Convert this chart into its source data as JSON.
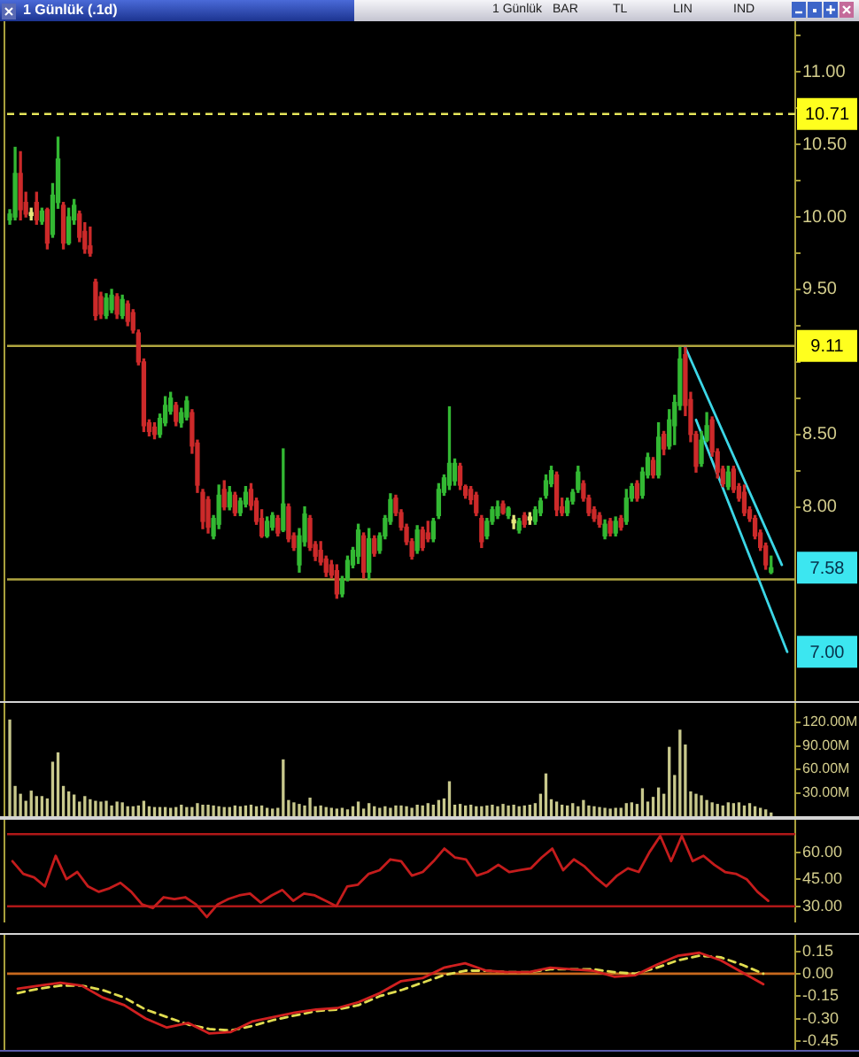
{
  "chart_data": [
    {
      "type": "candlestick",
      "title": "1 Günlük (.1d)",
      "categories": [
        null,
        null,
        null,
        null,
        null,
        null,
        null,
        null,
        null,
        null,
        null,
        null,
        null,
        null,
        null,
        null,
        null,
        null,
        null,
        null,
        null,
        null,
        null,
        null,
        null,
        null,
        null,
        null,
        null,
        null,
        null,
        null,
        null,
        null,
        null,
        null,
        null,
        null,
        null,
        null,
        null,
        null,
        null,
        null,
        null,
        null,
        null,
        null,
        null,
        null,
        null,
        null,
        null,
        null,
        null,
        null,
        null,
        null,
        null,
        null,
        null,
        null,
        null,
        null,
        null,
        null,
        null,
        null,
        null,
        null,
        null,
        null,
        null,
        null,
        null,
        null,
        null,
        null,
        null,
        null,
        null,
        null,
        null,
        null,
        null,
        null,
        null,
        null,
        null,
        null,
        null,
        null,
        null,
        null,
        null,
        null,
        null,
        null,
        null,
        null,
        null,
        null,
        null,
        null,
        null,
        null,
        null,
        null,
        null,
        null,
        null,
        null,
        null,
        null,
        null,
        null,
        null,
        null,
        null,
        null,
        null,
        null,
        null,
        null,
        null,
        null,
        null,
        null,
        null,
        null,
        null,
        null,
        null,
        null,
        null,
        null,
        null,
        null,
        null,
        null,
        null,
        null,
        null,
        null,
        null,
        null,
        null
      ],
      "ohlc": [
        [
          9.98,
          10.05,
          9.95,
          10.02
        ],
        [
          10.0,
          10.48,
          9.98,
          10.3
        ],
        [
          10.3,
          10.45,
          9.98,
          10.05
        ],
        [
          10.1,
          10.17,
          10.0,
          10.02
        ],
        [
          10.01,
          10.06,
          9.98,
          10.03
        ],
        [
          10.1,
          10.17,
          9.95,
          9.98
        ],
        [
          9.97,
          10.06,
          9.95,
          10.04
        ],
        [
          10.05,
          10.06,
          9.78,
          9.82
        ],
        [
          9.88,
          10.23,
          9.86,
          10.15
        ],
        [
          10.1,
          10.55,
          10.06,
          10.4
        ],
        [
          10.08,
          10.1,
          9.78,
          9.82
        ],
        [
          9.82,
          10.06,
          9.81,
          10.0
        ],
        [
          9.98,
          10.12,
          9.95,
          10.08
        ],
        [
          10.02,
          10.04,
          9.83,
          9.86
        ],
        [
          9.9,
          9.96,
          9.75,
          9.78
        ],
        [
          9.8,
          9.93,
          9.73,
          9.75
        ],
        [
          9.55,
          9.57,
          9.29,
          9.32
        ],
        [
          9.45,
          9.48,
          9.3,
          9.33
        ],
        [
          9.32,
          9.47,
          9.3,
          9.44
        ],
        [
          9.36,
          9.5,
          9.34,
          9.46
        ],
        [
          9.45,
          9.47,
          9.3,
          9.33
        ],
        [
          9.32,
          9.46,
          9.3,
          9.43
        ],
        [
          9.4,
          9.42,
          9.25,
          9.28
        ],
        [
          9.34,
          9.36,
          9.2,
          9.22
        ],
        [
          9.2,
          9.22,
          8.98,
          9.0
        ],
        [
          9.0,
          9.02,
          8.52,
          8.56
        ],
        [
          8.58,
          8.6,
          8.49,
          8.52
        ],
        [
          8.55,
          8.58,
          8.47,
          8.5
        ],
        [
          8.5,
          8.64,
          8.48,
          8.61
        ],
        [
          8.58,
          8.76,
          8.56,
          8.7
        ],
        [
          8.66,
          8.79,
          8.64,
          8.75
        ],
        [
          8.7,
          8.72,
          8.56,
          8.59
        ],
        [
          8.58,
          8.68,
          8.55,
          8.65
        ],
        [
          8.62,
          8.76,
          8.6,
          8.73
        ],
        [
          8.65,
          8.67,
          8.37,
          8.42
        ],
        [
          8.44,
          8.46,
          8.1,
          8.15
        ],
        [
          8.1,
          8.12,
          7.85,
          7.9
        ],
        [
          8.05,
          8.07,
          7.82,
          7.86
        ],
        [
          7.8,
          7.94,
          7.78,
          7.92
        ],
        [
          7.88,
          8.15,
          7.85,
          8.08
        ],
        [
          8.12,
          8.18,
          7.98,
          8.0
        ],
        [
          8.0,
          8.14,
          7.98,
          8.1
        ],
        [
          8.08,
          8.1,
          7.94,
          7.96
        ],
        [
          7.96,
          8.06,
          7.94,
          8.04
        ],
        [
          8.02,
          8.14,
          8.0,
          8.1
        ],
        [
          8.12,
          8.16,
          7.98,
          8.01
        ],
        [
          8.04,
          8.06,
          7.88,
          7.9
        ],
        [
          7.92,
          7.98,
          7.79,
          7.8
        ],
        [
          7.8,
          7.93,
          7.79,
          7.9
        ],
        [
          7.86,
          7.96,
          7.84,
          7.94
        ],
        [
          7.92,
          7.94,
          7.8,
          7.82
        ],
        [
          7.84,
          8.4,
          7.83,
          8.02
        ],
        [
          8.0,
          8.02,
          7.76,
          7.78
        ],
        [
          7.8,
          7.82,
          7.7,
          7.72
        ],
        [
          7.6,
          7.85,
          7.55,
          7.8
        ],
        [
          7.76,
          8.0,
          7.73,
          7.95
        ],
        [
          7.92,
          7.94,
          7.7,
          7.72
        ],
        [
          7.74,
          7.76,
          7.63,
          7.66
        ],
        [
          7.7,
          7.76,
          7.6,
          7.62
        ],
        [
          7.64,
          7.66,
          7.52,
          7.55
        ],
        [
          7.6,
          7.63,
          7.51,
          7.53
        ],
        [
          7.56,
          7.6,
          7.37,
          7.4
        ],
        [
          7.4,
          7.52,
          7.38,
          7.5
        ],
        [
          7.5,
          7.66,
          7.49,
          7.63
        ],
        [
          7.6,
          7.72,
          7.58,
          7.7
        ],
        [
          7.66,
          7.88,
          7.61,
          7.84
        ],
        [
          7.8,
          7.82,
          7.51,
          7.55
        ],
        [
          7.55,
          7.85,
          7.5,
          7.78
        ],
        [
          7.78,
          7.8,
          7.66,
          7.68
        ],
        [
          7.7,
          7.82,
          7.68,
          7.8
        ],
        [
          7.8,
          7.94,
          7.78,
          7.92
        ],
        [
          7.9,
          8.09,
          7.88,
          8.05
        ],
        [
          8.06,
          8.08,
          7.94,
          7.96
        ],
        [
          7.96,
          7.98,
          7.84,
          7.86
        ],
        [
          7.86,
          7.88,
          7.74,
          7.76
        ],
        [
          7.76,
          7.78,
          7.64,
          7.66
        ],
        [
          7.7,
          7.87,
          7.68,
          7.84
        ],
        [
          7.84,
          7.86,
          7.7,
          7.72
        ],
        [
          7.82,
          7.9,
          7.76,
          7.78
        ],
        [
          7.78,
          7.92,
          7.76,
          7.9
        ],
        [
          7.94,
          8.16,
          7.92,
          8.12
        ],
        [
          8.1,
          8.22,
          8.08,
          8.2
        ],
        [
          8.15,
          8.69,
          8.12,
          8.3
        ],
        [
          8.18,
          8.33,
          8.15,
          8.3
        ],
        [
          8.28,
          8.3,
          8.12,
          8.15
        ],
        [
          8.14,
          8.15,
          8.06,
          8.08
        ],
        [
          8.12,
          8.14,
          8.02,
          8.05
        ],
        [
          8.08,
          8.1,
          7.94,
          7.96
        ],
        [
          7.92,
          7.94,
          7.72,
          7.76
        ],
        [
          7.8,
          7.92,
          7.78,
          7.9
        ],
        [
          7.9,
          8.0,
          7.88,
          7.98
        ],
        [
          7.94,
          8.04,
          7.92,
          8.0
        ],
        [
          8.02,
          8.04,
          7.95,
          7.96
        ],
        [
          7.94,
          8.0,
          7.92,
          7.99
        ],
        [
          7.89,
          7.94,
          7.85,
          7.91
        ],
        [
          7.84,
          7.92,
          7.82,
          7.9
        ],
        [
          7.94,
          7.96,
          7.86,
          7.88
        ],
        [
          7.91,
          7.96,
          7.88,
          7.93
        ],
        [
          7.9,
          8.0,
          7.88,
          7.98
        ],
        [
          7.96,
          8.06,
          7.94,
          8.04
        ],
        [
          8.08,
          8.22,
          8.06,
          8.18
        ],
        [
          8.16,
          8.28,
          8.14,
          8.25
        ],
        [
          8.22,
          8.24,
          7.94,
          7.98
        ],
        [
          8.0,
          8.06,
          7.94,
          7.96
        ],
        [
          7.96,
          8.06,
          7.94,
          8.04
        ],
        [
          8.04,
          8.12,
          8.02,
          8.1
        ],
        [
          8.12,
          8.28,
          8.1,
          8.24
        ],
        [
          8.16,
          8.18,
          8.04,
          8.06
        ],
        [
          8.06,
          8.08,
          7.94,
          7.96
        ],
        [
          7.98,
          8.0,
          7.9,
          7.92
        ],
        [
          7.94,
          7.96,
          7.86,
          7.88
        ],
        [
          7.8,
          7.91,
          7.78,
          7.88
        ],
        [
          7.9,
          7.92,
          7.8,
          7.82
        ],
        [
          7.82,
          7.93,
          7.8,
          7.9
        ],
        [
          7.92,
          7.94,
          7.84,
          7.86
        ],
        [
          7.9,
          8.12,
          7.88,
          8.06
        ],
        [
          8.06,
          8.16,
          8.04,
          8.14
        ],
        [
          8.16,
          8.18,
          8.04,
          8.06
        ],
        [
          8.08,
          8.27,
          8.06,
          8.24
        ],
        [
          8.22,
          8.37,
          8.2,
          8.34
        ],
        [
          8.32,
          8.34,
          8.2,
          8.22
        ],
        [
          8.22,
          8.58,
          8.2,
          8.48
        ],
        [
          8.5,
          8.52,
          8.36,
          8.4
        ],
        [
          8.42,
          8.67,
          8.4,
          8.6
        ],
        [
          8.56,
          8.77,
          8.43,
          8.72
        ],
        [
          8.7,
          9.1,
          8.67,
          9.02
        ],
        [
          9.05,
          9.1,
          8.63,
          8.7
        ],
        [
          8.74,
          8.79,
          8.45,
          8.5
        ],
        [
          8.5,
          8.52,
          8.24,
          8.28
        ],
        [
          8.3,
          8.52,
          8.28,
          8.46
        ],
        [
          8.46,
          8.65,
          8.45,
          8.56
        ],
        [
          8.6,
          8.62,
          8.35,
          8.38
        ],
        [
          8.38,
          8.4,
          8.2,
          8.24
        ],
        [
          8.26,
          8.28,
          8.14,
          8.16
        ],
        [
          8.14,
          8.28,
          8.12,
          8.24
        ],
        [
          8.26,
          8.28,
          8.1,
          8.12
        ],
        [
          8.14,
          8.16,
          8.04,
          8.06
        ],
        [
          8.1,
          8.15,
          7.94,
          7.96
        ],
        [
          7.98,
          8.0,
          7.9,
          7.92
        ],
        [
          7.92,
          7.94,
          7.78,
          7.8
        ],
        [
          7.82,
          7.84,
          7.7,
          7.72
        ],
        [
          7.73,
          7.75,
          7.57,
          7.6
        ],
        [
          7.55,
          7.66,
          7.54,
          7.58
        ],
        null,
        null,
        null,
        null
      ],
      "colors": [
        "#33b833",
        "#33b833",
        "#cc2a2a",
        "#cc2a2a",
        "#e6e67e",
        "#cc2a2a",
        "#33b833",
        "#cc2a2a",
        "#33b833",
        "#33b833",
        "#cc2a2a",
        "#33b833",
        "#33b833",
        "#cc2a2a",
        "#cc2a2a",
        "#cc2a2a",
        "#cc2a2a",
        "#cc2a2a",
        "#33b833",
        "#33b833",
        "#cc2a2a",
        "#33b833",
        "#cc2a2a",
        "#cc2a2a",
        "#cc2a2a",
        "#cc2a2a",
        "#cc2a2a",
        "#cc2a2a",
        "#33b833",
        "#33b833",
        "#33b833",
        "#cc2a2a",
        "#33b833",
        "#33b833",
        "#cc2a2a",
        "#cc2a2a",
        "#cc2a2a",
        "#cc2a2a",
        "#33b833",
        "#33b833",
        "#cc2a2a",
        "#33b833",
        "#cc2a2a",
        "#33b833",
        "#33b833",
        "#cc2a2a",
        "#cc2a2a",
        "#cc2a2a",
        "#33b833",
        "#33b833",
        "#cc2a2a",
        "#33b833",
        "#cc2a2a",
        "#cc2a2a",
        "#33b833",
        "#33b833",
        "#cc2a2a",
        "#cc2a2a",
        "#cc2a2a",
        "#cc2a2a",
        "#cc2a2a",
        "#cc2a2a",
        "#33b833",
        "#33b833",
        "#33b833",
        "#33b833",
        "#cc2a2a",
        "#33b833",
        "#cc2a2a",
        "#33b833",
        "#33b833",
        "#33b833",
        "#cc2a2a",
        "#cc2a2a",
        "#cc2a2a",
        "#cc2a2a",
        "#33b833",
        "#cc2a2a",
        "#cc2a2a",
        "#33b833",
        "#33b833",
        "#33b833",
        "#33b833",
        "#33b833",
        "#cc2a2a",
        "#cc2a2a",
        "#cc2a2a",
        "#cc2a2a",
        "#cc2a2a",
        "#33b833",
        "#33b833",
        "#33b833",
        "#cc2a2a",
        "#33b833",
        "#e6e67e",
        "#33b833",
        "#cc2a2a",
        "#e6e67e",
        "#33b833",
        "#33b833",
        "#33b833",
        "#33b833",
        "#cc2a2a",
        "#cc2a2a",
        "#33b833",
        "#33b833",
        "#33b833",
        "#cc2a2a",
        "#cc2a2a",
        "#cc2a2a",
        "#cc2a2a",
        "#33b833",
        "#cc2a2a",
        "#33b833",
        "#cc2a2a",
        "#33b833",
        "#33b833",
        "#cc2a2a",
        "#33b833",
        "#33b833",
        "#cc2a2a",
        "#33b833",
        "#cc2a2a",
        "#33b833",
        "#33b833",
        "#33b833",
        "#cc2a2a",
        "#cc2a2a",
        "#cc2a2a",
        "#33b833",
        "#33b833",
        "#cc2a2a",
        "#cc2a2a",
        "#cc2a2a",
        "#33b833",
        "#cc2a2a",
        "#cc2a2a",
        "#cc2a2a",
        "#cc2a2a",
        "#cc2a2a",
        "#cc2a2a",
        "#cc2a2a",
        "#33b833",
        null,
        null,
        null,
        null
      ],
      "series": [
        {
          "type": "line",
          "color": "#3cd6e6",
          "values": [
            null,
            null,
            null,
            null,
            null,
            null,
            null,
            null,
            null,
            null,
            null,
            null,
            null,
            null,
            null,
            null,
            null,
            null,
            null,
            null,
            null,
            null,
            null,
            null,
            null,
            null,
            null,
            null,
            null,
            null,
            null,
            null,
            null,
            null,
            null,
            null,
            null,
            null,
            null,
            null,
            null,
            null,
            null,
            null,
            null,
            null,
            null,
            null,
            null,
            null,
            null,
            null,
            null,
            null,
            null,
            null,
            null,
            null,
            null,
            null,
            null,
            null,
            null,
            null,
            null,
            null,
            null,
            null,
            null,
            null,
            null,
            null,
            null,
            null,
            null,
            null,
            null,
            null,
            null,
            null,
            null,
            null,
            null,
            null,
            null,
            null,
            null,
            null,
            null,
            null,
            null,
            null,
            null,
            null,
            null,
            null,
            null,
            null,
            null,
            null,
            null,
            null,
            null,
            null,
            null,
            null,
            null,
            null,
            null,
            null,
            null,
            null,
            null,
            null,
            null,
            null,
            null,
            null,
            null,
            null,
            null,
            null,
            null,
            null,
            null,
            null,
            9.1,
            null,
            null,
            null,
            null,
            null,
            null,
            null,
            null,
            null,
            null,
            null,
            null,
            null,
            null,
            null,
            null,
            null,
            7.6,
            null,
            null
          ]
        },
        {
          "type": "line",
          "color": "#3cd6e6",
          "values": [
            null,
            null,
            null,
            null,
            null,
            null,
            null,
            null,
            null,
            null,
            null,
            null,
            null,
            null,
            null,
            null,
            null,
            null,
            null,
            null,
            null,
            null,
            null,
            null,
            null,
            null,
            null,
            null,
            null,
            null,
            null,
            null,
            null,
            null,
            null,
            null,
            null,
            null,
            null,
            null,
            null,
            null,
            null,
            null,
            null,
            null,
            null,
            null,
            null,
            null,
            null,
            null,
            null,
            null,
            null,
            null,
            null,
            null,
            null,
            null,
            null,
            null,
            null,
            null,
            null,
            null,
            null,
            null,
            null,
            null,
            null,
            null,
            null,
            null,
            null,
            null,
            null,
            null,
            null,
            null,
            null,
            null,
            null,
            null,
            null,
            null,
            null,
            null,
            null,
            null,
            null,
            null,
            null,
            null,
            null,
            null,
            null,
            null,
            null,
            null,
            null,
            null,
            null,
            null,
            null,
            null,
            null,
            null,
            null,
            null,
            null,
            null,
            null,
            null,
            null,
            null,
            null,
            null,
            null,
            null,
            null,
            null,
            null,
            null,
            null,
            null,
            null,
            null,
            8.6,
            null,
            null,
            null,
            null,
            null,
            null,
            null,
            null,
            null,
            null,
            null,
            null,
            null,
            null,
            null,
            null,
            7.0,
            null
          ]
        }
      ],
      "ylim": [
        6.66,
        11.35
      ],
      "yticks": [
        {
          "value": 8,
          "label": "8.00"
        },
        {
          "value": 8.25,
          "label": null
        },
        {
          "value": 8.5,
          "label": "8.50"
        },
        {
          "value": 8.75,
          "label": null
        },
        {
          "value": 9,
          "label": null
        },
        {
          "value": 9.25,
          "label": null
        },
        {
          "value": 9.5,
          "label": "9.50"
        },
        {
          "value": 9.75,
          "label": null
        },
        {
          "value": 10,
          "label": "10.00"
        },
        {
          "value": 10.25,
          "label": null
        },
        {
          "value": 10.5,
          "label": "10.50"
        },
        {
          "value": 10.75,
          "label": null
        },
        {
          "value": 11,
          "label": "11.00"
        },
        {
          "value": 11.25,
          "label": null
        }
      ],
      "ref_lines": [
        {
          "axis": "y",
          "value": 10.71,
          "label": "10.71",
          "color": "#e6e65a",
          "line_style": "dashed"
        },
        {
          "axis": "y",
          "value": 9.11,
          "label": "9.11",
          "color": "#b0a640"
        },
        {
          "axis": "y",
          "value": 7.5,
          "color": "#b0a640"
        }
      ],
      "annotations": [
        "1 Günlük",
        "BAR",
        "TL",
        "LIN",
        "IND",
        {
          "text": "7.58",
          "y": 7.58
        },
        {
          "text": "7.00",
          "y": 7.0
        }
      ],
      "tick_labels": "y"
    },
    {
      "type": "bar",
      "categories": [
        null,
        null,
        null,
        null,
        null,
        null,
        null,
        null,
        null,
        null,
        null,
        null,
        null,
        null,
        null,
        null,
        null,
        null,
        null,
        null,
        null,
        null,
        null,
        null,
        null,
        null,
        null,
        null,
        null,
        null,
        null,
        null,
        null,
        null,
        null,
        null,
        null,
        null,
        null,
        null,
        null,
        null,
        null,
        null,
        null,
        null,
        null,
        null,
        null,
        null,
        null,
        null,
        null,
        null,
        null,
        null,
        null,
        null,
        null,
        null,
        null,
        null,
        null,
        null,
        null,
        null,
        null,
        null,
        null,
        null,
        null,
        null,
        null,
        null,
        null,
        null,
        null,
        null,
        null,
        null,
        null,
        null,
        null,
        null,
        null,
        null,
        null,
        null,
        null,
        null,
        null,
        null,
        null,
        null,
        null,
        null,
        null,
        null,
        null,
        null,
        null,
        null,
        null,
        null,
        null,
        null,
        null,
        null,
        null,
        null,
        null,
        null,
        null,
        null,
        null,
        null,
        null,
        null,
        null,
        null,
        null,
        null,
        null,
        null,
        null,
        null,
        null,
        null,
        null,
        null,
        null,
        null,
        null,
        null,
        null,
        null,
        null,
        null,
        null,
        null,
        null,
        null,
        null,
        null,
        null,
        null,
        null
      ],
      "values": [
        123,
        38,
        28,
        19,
        32,
        25,
        25,
        22,
        69,
        81,
        38,
        31,
        27,
        18,
        25,
        21,
        19,
        18,
        19,
        13,
        18,
        17,
        12,
        12,
        13,
        19,
        12,
        11,
        11,
        11,
        10,
        11,
        14,
        11,
        11,
        16,
        14,
        14,
        13,
        12,
        11,
        11,
        13,
        12,
        13,
        14,
        12,
        13,
        10,
        9,
        10,
        72,
        20,
        17,
        15,
        13,
        23,
        12,
        13,
        11,
        10,
        9,
        10,
        8,
        12,
        18,
        9,
        16,
        12,
        10,
        12,
        10,
        13,
        13,
        12,
        10,
        14,
        13,
        16,
        14,
        20,
        22,
        44,
        14,
        15,
        13,
        14,
        12,
        12,
        13,
        14,
        12,
        15,
        13,
        14,
        12,
        13,
        14,
        16,
        28,
        54,
        21,
        18,
        14,
        13,
        16,
        12,
        20,
        13,
        12,
        11,
        10,
        9,
        10,
        10,
        16,
        17,
        15,
        35,
        18,
        24,
        36,
        28,
        88,
        52,
        110,
        91,
        31,
        28,
        26,
        20,
        17,
        15,
        13,
        17,
        16,
        17,
        13,
        16,
        12,
        10,
        8,
        4,
        null,
        null,
        null,
        null
      ],
      "color": "#c8c88c",
      "ylim": [
        0,
        145
      ],
      "yticks": [
        {
          "value": 30,
          "label": "30.00M"
        },
        {
          "value": 60,
          "label": "60.00M"
        },
        {
          "value": 90,
          "label": "90.00M"
        },
        {
          "value": 120,
          "label": "120.00M"
        }
      ],
      "tick_labels": "y"
    },
    {
      "type": "line",
      "categories": [
        null,
        null,
        null,
        null,
        null,
        null,
        null,
        null,
        null,
        null,
        null,
        null,
        null,
        null,
        null,
        null,
        null,
        null,
        null,
        null,
        null,
        null,
        null,
        null,
        null,
        null,
        null,
        null,
        null,
        null,
        null,
        null,
        null,
        null,
        null,
        null,
        null,
        null,
        null,
        null,
        null,
        null,
        null,
        null,
        null,
        null,
        null,
        null,
        null,
        null,
        null,
        null,
        null,
        null,
        null,
        null,
        null,
        null,
        null,
        null,
        null,
        null,
        null,
        null,
        null,
        null,
        null,
        null,
        null,
        null,
        null,
        null,
        null
      ],
      "series": [
        {
          "color": "#c41c1c",
          "values": [
            55,
            48,
            46,
            41,
            58,
            45,
            49,
            41,
            38,
            40,
            43,
            38,
            31,
            29,
            35,
            34,
            35,
            31,
            24,
            31,
            34,
            36,
            37,
            32,
            36,
            39,
            33,
            37,
            36,
            33,
            30,
            41,
            42,
            48,
            50,
            56,
            55,
            47,
            49,
            55,
            62,
            57,
            56,
            47,
            49,
            53,
            49,
            50,
            51,
            57,
            62,
            50,
            56,
            52,
            46,
            41,
            47,
            51,
            49,
            60,
            69,
            55,
            69,
            55,
            58,
            53,
            49,
            48,
            45,
            38,
            33,
            null,
            null
          ]
        }
      ],
      "ylim": [
        21,
        78
      ],
      "yticks": [
        {
          "value": 30,
          "label": "30.00"
        },
        {
          "value": 45,
          "label": "45.00"
        },
        {
          "value": 60,
          "label": "60.00"
        }
      ],
      "ref_lines": [
        {
          "axis": "y",
          "value": 70,
          "color": "#b01818"
        },
        {
          "axis": "y",
          "value": 30,
          "color": "#b01818"
        }
      ],
      "tick_labels": "y"
    },
    {
      "type": "line",
      "categories": [
        null,
        null,
        null,
        null,
        null,
        null,
        null,
        null,
        null,
        null,
        null,
        null,
        null,
        null,
        null,
        null,
        null,
        null,
        null,
        null,
        null,
        null,
        null,
        null,
        null,
        null,
        null,
        null,
        null,
        null,
        null,
        null,
        null,
        null,
        null,
        null,
        null
      ],
      "series": [
        {
          "color": "#d02020",
          "values": [
            -0.1,
            -0.08,
            -0.06,
            -0.08,
            -0.16,
            -0.21,
            -0.3,
            -0.36,
            -0.33,
            -0.4,
            -0.39,
            -0.32,
            -0.29,
            -0.26,
            -0.24,
            -0.23,
            -0.19,
            -0.13,
            -0.05,
            -0.03,
            0.04,
            0.07,
            0.02,
            0.01,
            0.01,
            0.04,
            0.03,
            0.02,
            -0.02,
            -0.01,
            0.06,
            0.12,
            0.14,
            0.09,
            0.01,
            -0.07,
            null
          ]
        },
        {
          "color": "#e0dc50",
          "line_style": "dashed",
          "values": [
            -0.13,
            -0.1,
            -0.08,
            -0.08,
            -0.11,
            -0.16,
            -0.24,
            -0.29,
            -0.34,
            -0.37,
            -0.38,
            -0.35,
            -0.31,
            -0.28,
            -0.25,
            -0.24,
            -0.21,
            -0.15,
            -0.11,
            -0.06,
            -0.01,
            0.02,
            0.02,
            0.01,
            0.01,
            0.03,
            0.03,
            0.03,
            0.01,
            0.0,
            0.04,
            0.09,
            0.12,
            0.11,
            0.06,
            0.0,
            null
          ]
        }
      ],
      "ylim": [
        -0.51,
        0.26
      ],
      "yticks": [
        {
          "value": -0.45,
          "label": "-0.45"
        },
        {
          "value": -0.3,
          "label": "-0.30"
        },
        {
          "value": -0.15,
          "label": "-0.15"
        },
        {
          "value": 0,
          "label": "0.00"
        },
        {
          "value": 0.15,
          "label": "0.15"
        }
      ],
      "ref_lines": [
        {
          "axis": "y",
          "value": 0,
          "color": "#c8691e"
        }
      ],
      "tick_labels": "y"
    }
  ]
}
